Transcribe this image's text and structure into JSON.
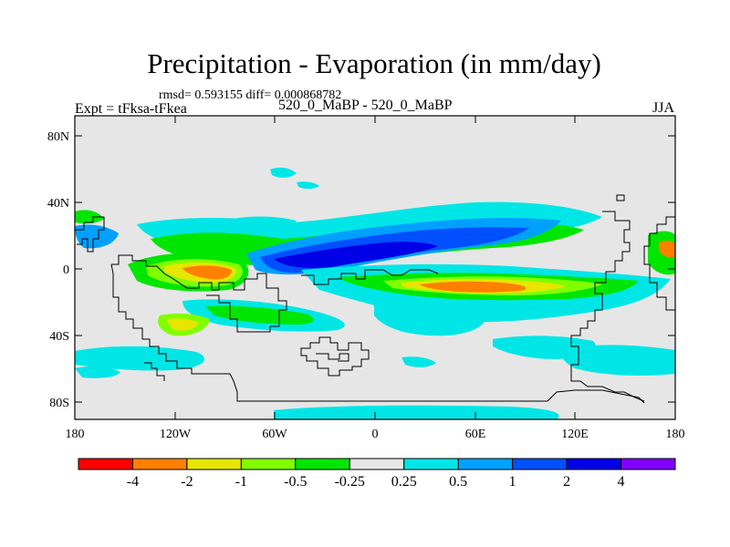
{
  "figure": {
    "title": "Precipitation - Evaporation (in mm/day)",
    "stats": "rmsd= 0.593155 diff= 0.000868782",
    "experiment": "Expt = tFksa-tFkea",
    "center_label": "520_0_MaBP - 520_0_MaBP",
    "season": "JJA"
  },
  "axes": {
    "lat_ticks": [
      "80N",
      "40N",
      "0",
      "40S",
      "80S"
    ],
    "lon_ticks": [
      "180",
      "120W",
      "60W",
      "0",
      "60E",
      "120E",
      "180"
    ]
  },
  "legend": {
    "colors": [
      "#ff0000",
      "#ff8000",
      "#e6e600",
      "#80ff00",
      "#00e600",
      "#e6e6e6",
      "#00e6e6",
      "#00a0ff",
      "#0050ff",
      "#0000e6",
      "#8000ff"
    ],
    "labels": [
      "-4",
      "-2",
      "-1",
      "-0.5",
      "-0.25",
      "0.25",
      "0.5",
      "1",
      "2",
      "4"
    ]
  },
  "colors": {
    "background": "#e6e6e6",
    "coastline": "#000000"
  }
}
